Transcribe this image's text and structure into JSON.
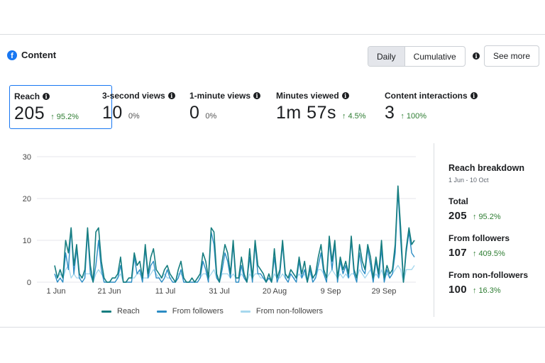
{
  "header": {
    "title": "Content",
    "icon": "facebook-icon"
  },
  "controls": {
    "daily_label": "Daily",
    "cumulative_label": "Cumulative",
    "see_more_label": "See more",
    "active": "Daily"
  },
  "metrics": [
    {
      "label": "Reach",
      "value": "205",
      "change": "95.2%",
      "direction": "up",
      "selected": true
    },
    {
      "label": "3-second views",
      "value": "10",
      "change": "0%",
      "direction": "none",
      "selected": false
    },
    {
      "label": "1-minute views",
      "value": "0",
      "change": "0%",
      "direction": "none",
      "selected": false
    },
    {
      "label": "Minutes viewed",
      "value": "1m 57s",
      "change": "4.5%",
      "direction": "up",
      "selected": false
    },
    {
      "label": "Content interactions",
      "value": "3",
      "change": "100%",
      "direction": "up",
      "selected": false
    }
  ],
  "breakdown": {
    "title": "Reach breakdown",
    "range": "1 Jun - 10 Oct",
    "items": [
      {
        "label": "Total",
        "value": "205",
        "change": "95.2%"
      },
      {
        "label": "From followers",
        "value": "107",
        "change": "409.5%"
      },
      {
        "label": "From non-followers",
        "value": "100",
        "change": "16.3%"
      }
    ]
  },
  "colors": {
    "reach": "#167d7f",
    "followers": "#2b8cc4",
    "non_followers": "#a6d8ee",
    "accent": "#1877f2",
    "up": "#2e7d32"
  },
  "chart_data": {
    "type": "line",
    "x_ticks": [
      "1 Jun",
      "21 Jun",
      "11 Jul",
      "31 Jul",
      "20 Aug",
      "9 Sep",
      "29 Sep"
    ],
    "x_start": "1 Jun",
    "x_end": "10 Oct",
    "ylim": [
      0,
      30
    ],
    "y_ticks": [
      0,
      10,
      20,
      30
    ],
    "grid": true,
    "legend_position": "bottom",
    "series": [
      {
        "name": "Reach",
        "color": "#167d7f",
        "values": [
          4,
          1,
          3,
          1,
          10,
          7,
          13,
          4,
          9,
          2,
          1,
          3,
          13,
          4,
          0,
          12,
          13,
          5,
          1,
          0,
          0,
          1,
          1,
          2,
          6,
          0,
          0,
          1,
          1,
          7,
          4,
          5,
          1,
          9,
          2,
          6,
          8,
          3,
          2,
          1,
          3,
          4,
          2,
          1,
          0,
          3,
          5,
          1,
          0,
          0,
          1,
          0,
          1,
          2,
          7,
          5,
          1,
          13,
          12,
          2,
          0,
          5,
          9,
          7,
          2,
          10,
          1,
          1,
          6,
          2,
          0,
          8,
          1,
          10,
          4,
          3,
          2,
          0,
          2,
          0,
          8,
          1,
          3,
          10,
          2,
          1,
          3,
          2,
          1,
          6,
          2,
          5,
          0,
          4,
          1,
          2,
          6,
          9,
          3,
          1,
          11,
          5,
          10,
          1,
          6,
          3,
          5,
          2,
          11,
          3,
          1,
          9,
          5,
          3,
          9,
          6,
          1,
          6,
          2,
          10,
          1,
          4,
          2,
          3,
          9,
          23,
          13,
          0,
          8,
          13,
          9,
          10
        ]
      },
      {
        "name": "From followers",
        "color": "#2b8cc4",
        "values": [
          2,
          0,
          1,
          0,
          7,
          3,
          13,
          2,
          8,
          1,
          0,
          1,
          12,
          2,
          0,
          4,
          10,
          3,
          0,
          0,
          0,
          0,
          0,
          1,
          4,
          0,
          0,
          0,
          0,
          6,
          2,
          3,
          0,
          8,
          1,
          4,
          5,
          1,
          1,
          0,
          1,
          3,
          1,
          0,
          0,
          1,
          3,
          0,
          0,
          0,
          0,
          0,
          0,
          1,
          5,
          3,
          0,
          12,
          9,
          1,
          0,
          3,
          7,
          5,
          1,
          9,
          0,
          0,
          4,
          1,
          0,
          6,
          0,
          9,
          2,
          2,
          1,
          0,
          1,
          0,
          6,
          0,
          2,
          9,
          1,
          0,
          2,
          1,
          0,
          5,
          1,
          3,
          0,
          3,
          0,
          1,
          4,
          7,
          2,
          0,
          10,
          3,
          9,
          0,
          5,
          2,
          4,
          1,
          10,
          2,
          0,
          7,
          3,
          2,
          8,
          4,
          0,
          5,
          1,
          8,
          0,
          3,
          1,
          2,
          7,
          22,
          10,
          0,
          7,
          12,
          7,
          6
        ]
      },
      {
        "name": "From non-followers",
        "color": "#a6d8ee",
        "values": [
          2,
          1,
          2,
          1,
          3,
          4,
          1,
          2,
          1,
          1,
          1,
          2,
          2,
          2,
          0,
          2,
          3,
          2,
          1,
          0,
          0,
          1,
          1,
          1,
          2,
          0,
          0,
          1,
          1,
          1,
          2,
          2,
          1,
          1,
          1,
          2,
          3,
          2,
          1,
          1,
          2,
          1,
          1,
          1,
          0,
          2,
          2,
          1,
          0,
          0,
          1,
          0,
          1,
          1,
          2,
          2,
          1,
          2,
          3,
          1,
          0,
          2,
          2,
          2,
          1,
          2,
          1,
          1,
          2,
          1,
          0,
          2,
          1,
          2,
          2,
          1,
          1,
          0,
          1,
          0,
          2,
          1,
          1,
          2,
          1,
          1,
          2,
          1,
          1,
          2,
          1,
          2,
          0,
          2,
          1,
          1,
          3,
          3,
          2,
          1,
          2,
          3,
          2,
          1,
          2,
          1,
          2,
          1,
          2,
          2,
          1,
          3,
          2,
          1,
          2,
          3,
          1,
          2,
          1,
          3,
          1,
          2,
          1,
          2,
          3,
          4,
          3,
          0,
          3,
          3,
          3,
          4
        ]
      }
    ]
  }
}
